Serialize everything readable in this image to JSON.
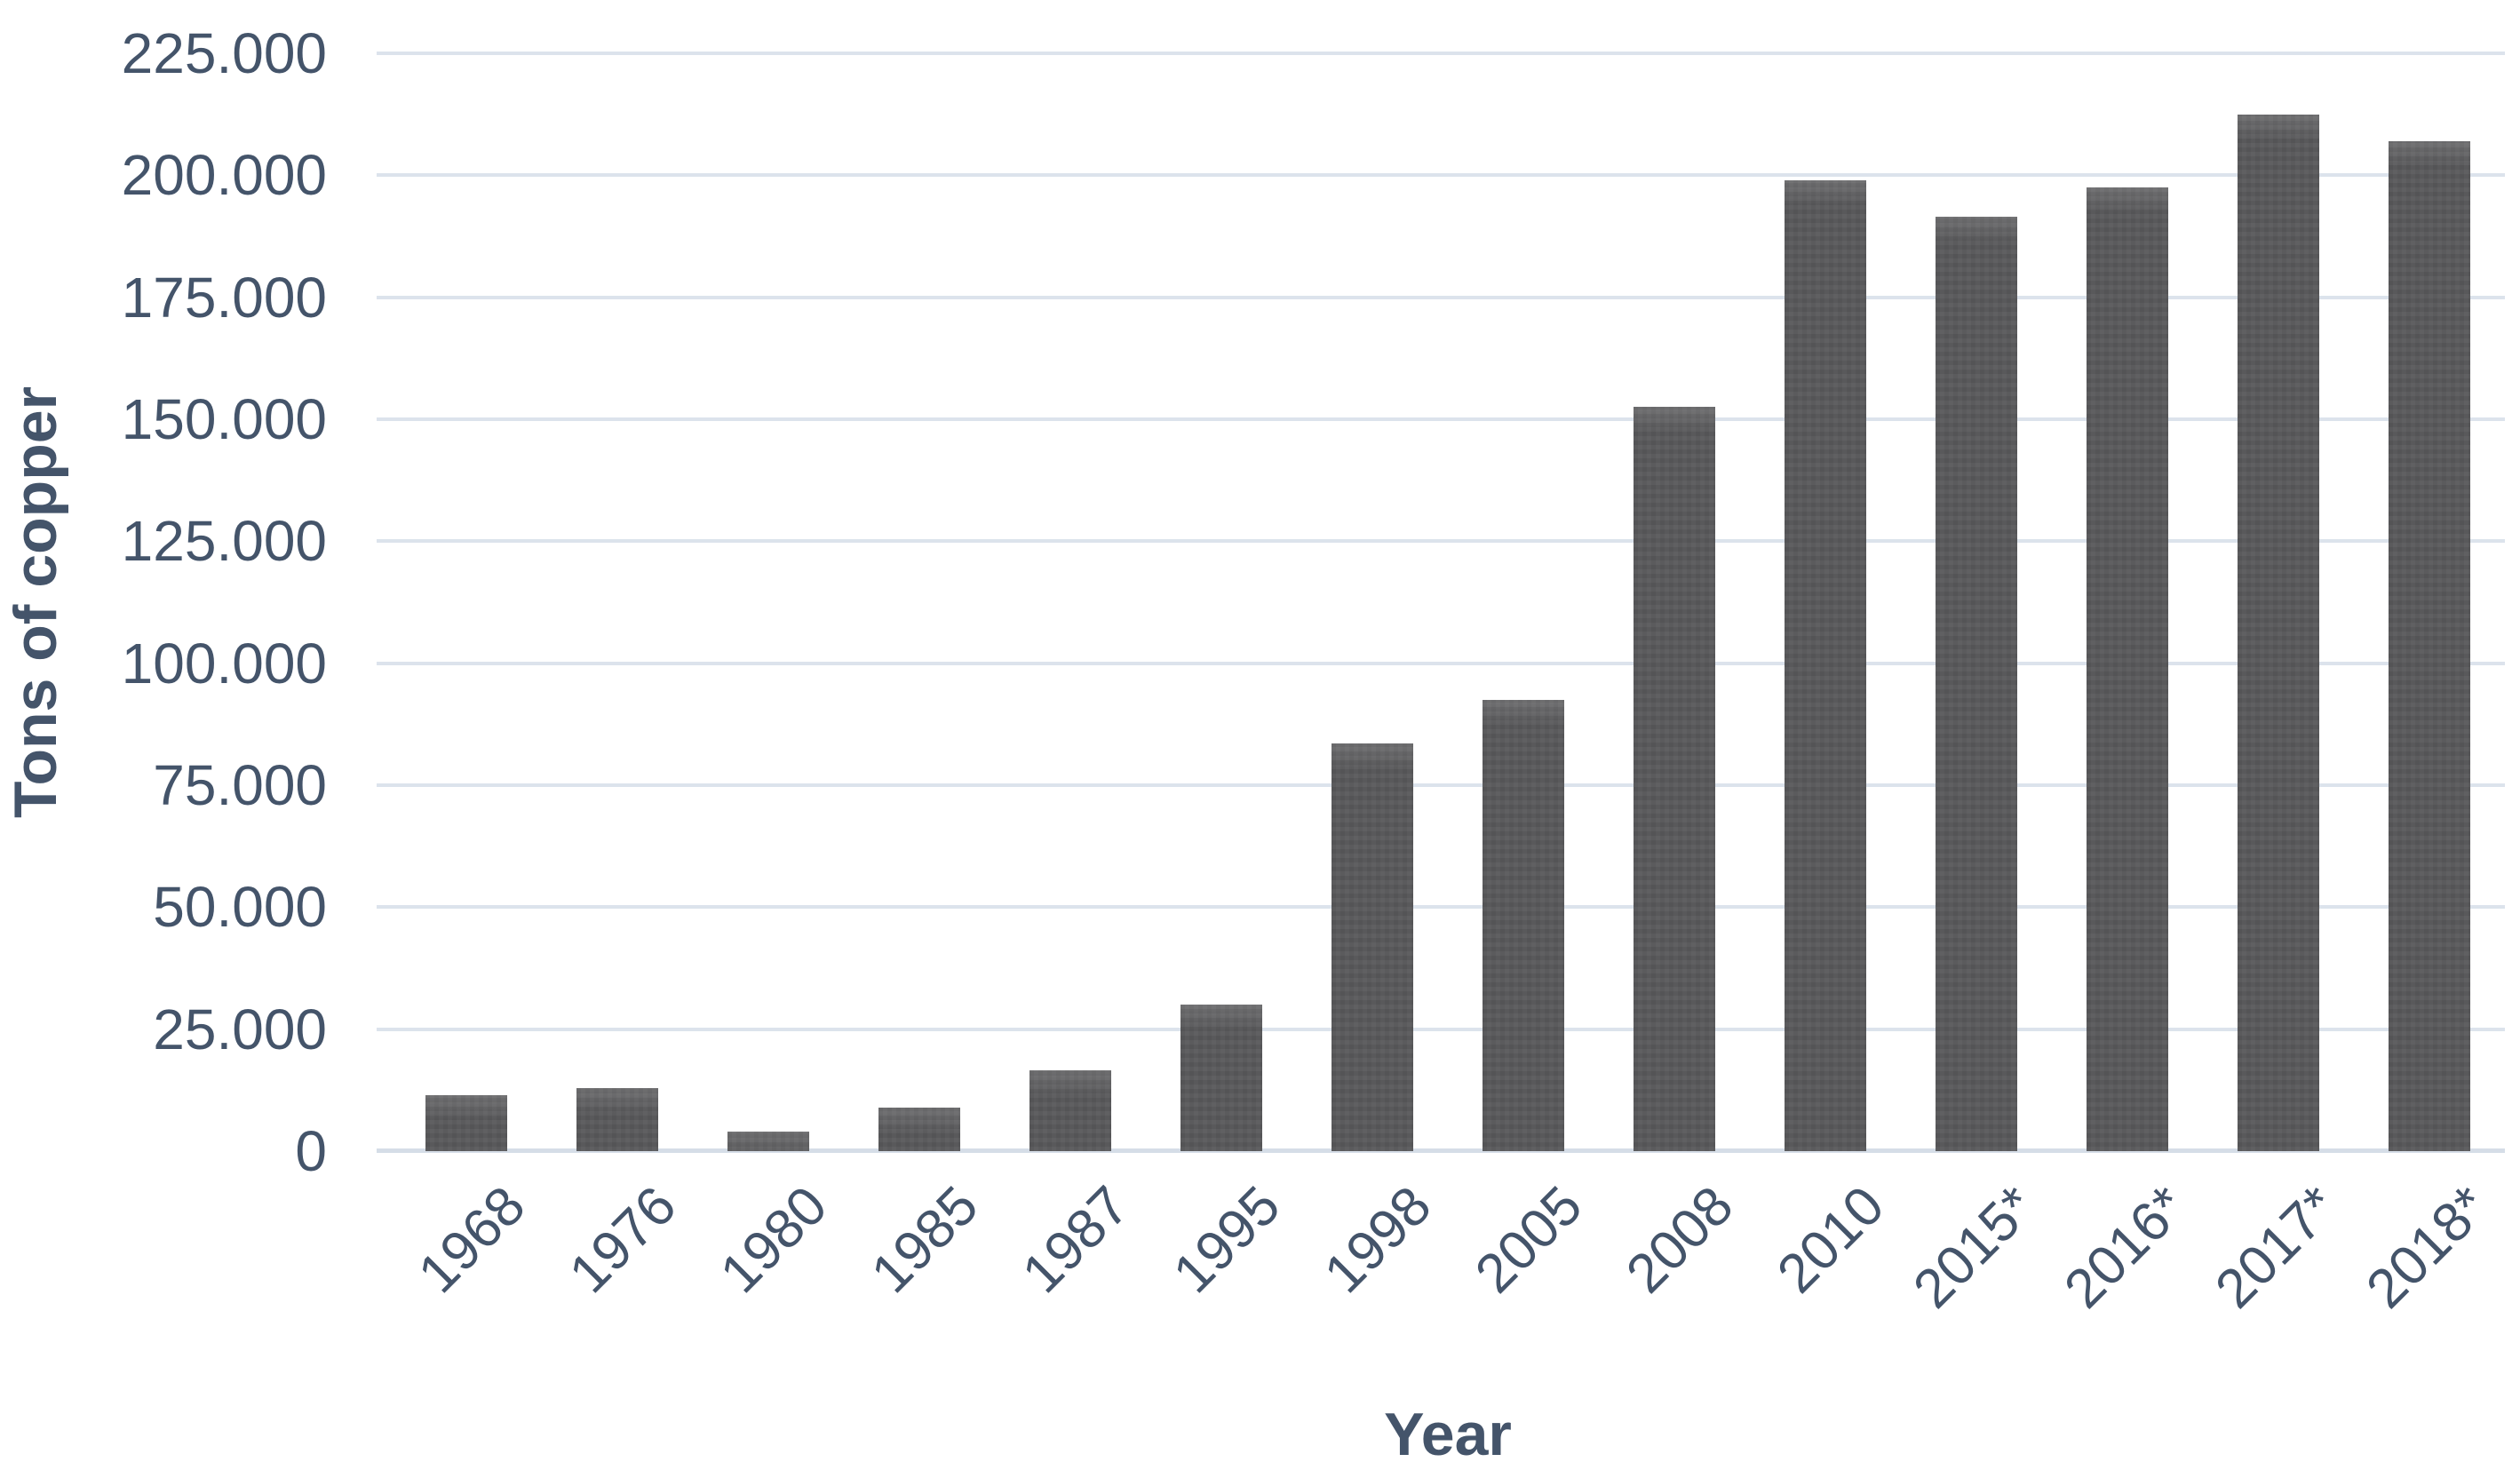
{
  "chart_data": {
    "type": "bar",
    "title": "",
    "xlabel": "Year",
    "ylabel": "Tons of copper",
    "categories": [
      "1968",
      "1976",
      "1980",
      "1985",
      "1987",
      "1995",
      "1998",
      "2005",
      "2008",
      "2010",
      "2015*",
      "2016*",
      "2017*",
      "2018*"
    ],
    "values": [
      11500,
      13000,
      4000,
      9000,
      16500,
      30000,
      83500,
      92500,
      152500,
      199000,
      191500,
      197500,
      212500,
      207000
    ],
    "ylim": [
      0,
      225000
    ],
    "ytick_step": 25000,
    "ytick_labels": [
      "0",
      "25.000",
      "50.000",
      "75.000",
      "100.000",
      "125.000",
      "150.000",
      "175.000",
      "200.000",
      "225.000"
    ],
    "grid": "horizontal",
    "legend": "none",
    "colors": {
      "bar": "#59595B",
      "gridline": "#DCE3EC",
      "text": "#44546A",
      "background": "#FFFFFF"
    }
  }
}
